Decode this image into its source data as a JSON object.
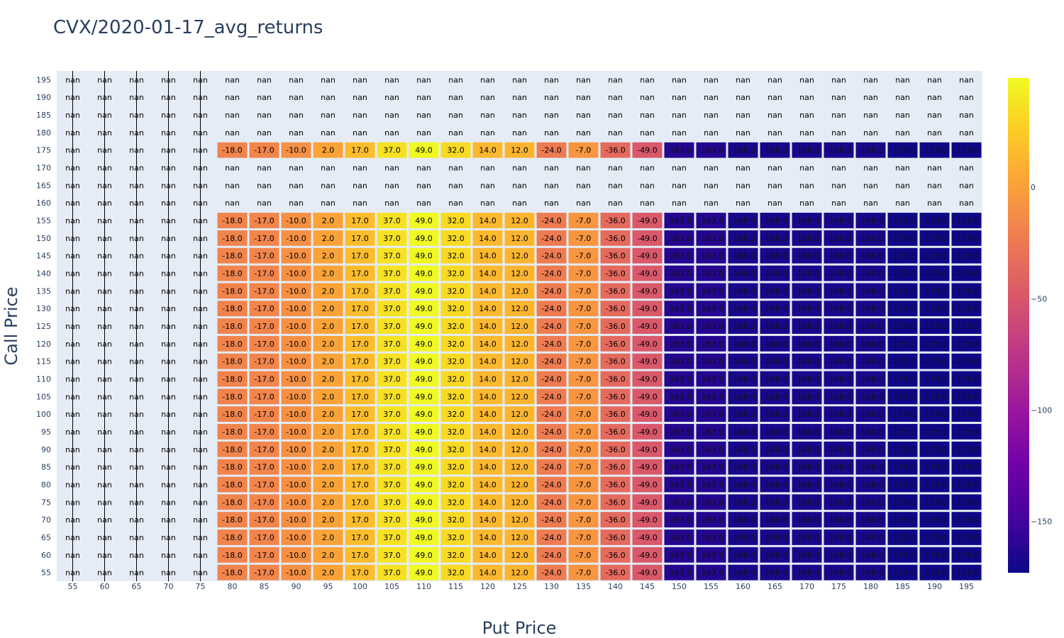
{
  "chart_data": {
    "type": "heatmap",
    "title": "CVX/2020-01-17_avg_returns",
    "xlabel": "Put Price",
    "ylabel": "Call Price",
    "x": [
      55,
      60,
      65,
      70,
      75,
      80,
      85,
      90,
      95,
      100,
      105,
      110,
      115,
      120,
      125,
      130,
      135,
      140,
      145,
      150,
      155,
      160,
      165,
      170,
      175,
      180,
      185,
      190,
      195
    ],
    "y": [
      55,
      60,
      65,
      70,
      75,
      80,
      85,
      90,
      95,
      100,
      105,
      110,
      115,
      120,
      125,
      130,
      135,
      140,
      145,
      150,
      155,
      160,
      165,
      170,
      175,
      180,
      185,
      190,
      195
    ],
    "row_values_by_put": [
      null,
      null,
      null,
      null,
      null,
      -18.0,
      -17.0,
      -10.0,
      2.0,
      17.0,
      37.0,
      49.0,
      32.0,
      14.0,
      12.0,
      -24.0,
      -7.0,
      -36.0,
      -49.0,
      -163.0,
      -163.0,
      -168.0,
      -168.0,
      -168.0,
      -168.0,
      -168.0,
      -173.0,
      -173.0,
      -173.0
    ],
    "rows_with_values": [
      55,
      60,
      65,
      70,
      75,
      80,
      85,
      90,
      95,
      100,
      105,
      110,
      115,
      120,
      125,
      130,
      135,
      140,
      145,
      150,
      155,
      175
    ],
    "missing_label": "nan",
    "colorscale": "plasma",
    "zmin": -173,
    "zmax": 49,
    "colorbar_ticks": [
      "0",
      "−50",
      "−100",
      "−150"
    ],
    "colorbar_tick_values": [
      0,
      -50,
      -100,
      -150
    ],
    "plot_background": "#e5ecf6"
  }
}
